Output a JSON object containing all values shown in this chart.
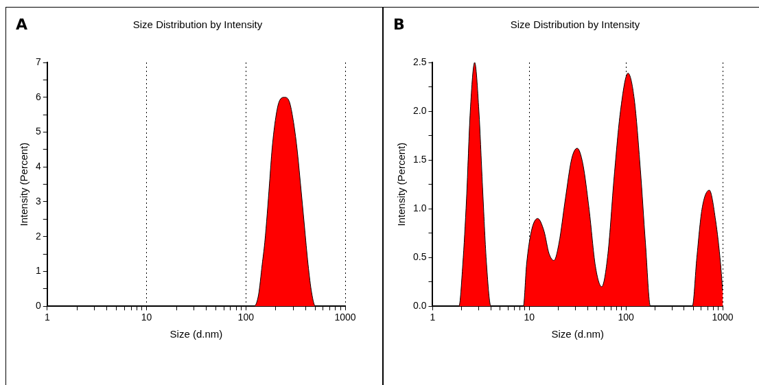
{
  "chart_data": [
    {
      "type": "area",
      "title": "Size Distribution by Intensity",
      "xlabel": "Size (d.nm)",
      "ylabel": "Intensity (Percent)",
      "annotations": [
        "A"
      ],
      "log": "x",
      "grid": "x",
      "xlim": [
        1,
        1000
      ],
      "xticks": [
        1,
        {
          "value": 2,
          "label": null
        },
        {
          "value": 3,
          "label": null
        },
        {
          "value": 4,
          "label": null
        },
        {
          "value": 5,
          "label": null
        },
        {
          "value": 6,
          "label": null
        },
        {
          "value": 7,
          "label": null
        },
        {
          "value": 8,
          "label": null
        },
        {
          "value": 9,
          "label": null
        },
        10,
        {
          "value": 20,
          "label": null
        },
        {
          "value": 30,
          "label": null
        },
        {
          "value": 40,
          "label": null
        },
        {
          "value": 50,
          "label": null
        },
        {
          "value": 60,
          "label": null
        },
        {
          "value": 70,
          "label": null
        },
        {
          "value": 80,
          "label": null
        },
        {
          "value": 90,
          "label": null
        },
        100,
        {
          "value": 200,
          "label": null
        },
        {
          "value": 300,
          "label": null
        },
        {
          "value": 400,
          "label": null
        },
        {
          "value": 500,
          "label": null
        },
        {
          "value": 600,
          "label": null
        },
        {
          "value": 700,
          "label": null
        },
        {
          "value": 800,
          "label": null
        },
        {
          "value": 900,
          "label": null
        },
        1000
      ],
      "ylim": [
        0,
        7
      ],
      "yticks": [
        0,
        {
          "value": 0.5,
          "label": null
        },
        1,
        {
          "value": 1.5,
          "label": null
        },
        2,
        {
          "value": 2.5,
          "label": null
        },
        3,
        {
          "value": 3.5,
          "label": null
        },
        4,
        {
          "value": 4.5,
          "label": null
        },
        5,
        {
          "value": 5.5,
          "label": null
        },
        6,
        {
          "value": 6.5,
          "label": null
        },
        7
      ],
      "series": [
        {
          "color": "#ff0000",
          "x": [
            1,
            120.8,
            134,
            146,
            155,
            164,
            173,
            184,
            200,
            218,
            245,
            275,
            299,
            327,
            356,
            388,
            423,
            460,
            502,
            1000
          ],
          "values": [
            0,
            0,
            0.32,
            1.2,
            1.83,
            2.65,
            3.53,
            4.54,
            5.42,
            5.9,
            6.0,
            5.86,
            5.36,
            4.54,
            3.47,
            2.33,
            1.2,
            0.38,
            0,
            0
          ]
        }
      ]
    },
    {
      "type": "area",
      "title": "Size Distribution by Intensity",
      "xlabel": "Size (d.nm)",
      "ylabel": "Intensity (Percent)",
      "annotations": [
        "B"
      ],
      "log": "x",
      "grid": "x",
      "xlim": [
        1,
        1000
      ],
      "xticks": [
        1,
        {
          "value": 2,
          "label": null
        },
        {
          "value": 3,
          "label": null
        },
        {
          "value": 4,
          "label": null
        },
        {
          "value": 5,
          "label": null
        },
        {
          "value": 6,
          "label": null
        },
        {
          "value": 7,
          "label": null
        },
        {
          "value": 8,
          "label": null
        },
        {
          "value": 9,
          "label": null
        },
        10,
        {
          "value": 20,
          "label": null
        },
        {
          "value": 30,
          "label": null
        },
        {
          "value": 40,
          "label": null
        },
        {
          "value": 50,
          "label": null
        },
        {
          "value": 60,
          "label": null
        },
        {
          "value": 70,
          "label": null
        },
        {
          "value": 80,
          "label": null
        },
        {
          "value": 90,
          "label": null
        },
        100,
        {
          "value": 200,
          "label": null
        },
        {
          "value": 300,
          "label": null
        },
        {
          "value": 400,
          "label": null
        },
        {
          "value": 500,
          "label": null
        },
        {
          "value": 600,
          "label": null
        },
        {
          "value": 700,
          "label": null
        },
        {
          "value": 800,
          "label": null
        },
        {
          "value": 900,
          "label": null
        },
        1000
      ],
      "ylim": [
        0,
        2.5
      ],
      "yticks": [
        {
          "value": 0,
          "label": "0.0"
        },
        {
          "value": 0.25,
          "label": null
        },
        0.5,
        {
          "value": 0.75,
          "label": null
        },
        {
          "value": 1,
          "label": "1.0"
        },
        {
          "value": 1.25,
          "label": null
        },
        1.5,
        {
          "value": 1.75,
          "label": null
        },
        {
          "value": 2,
          "label": "2.0"
        },
        {
          "value": 2.25,
          "label": null
        },
        2.5
      ],
      "series": [
        {
          "color": "#ff0000",
          "x": [
            1,
            1.87,
            2.05,
            2.24,
            2.45,
            2.72,
            3.01,
            3.3,
            3.61,
            4.01,
            8.67,
            9.37,
            10.5,
            12.2,
            14.2,
            16.0,
            18.0,
            20.3,
            23.6,
            27.4,
            31.3,
            35.8,
            41.6,
            48.3,
            56.1,
            65.1,
            75.5,
            87.7,
            105,
            122,
            141,
            159,
            179,
            486,
            541,
            610,
            729,
            846,
            953,
            1000
          ],
          "values": [
            0,
            0,
            0.43,
            1.1,
            2.0,
            2.5,
            2.0,
            1.17,
            0.43,
            0,
            0,
            0.43,
            0.77,
            0.9,
            0.77,
            0.54,
            0.47,
            0.65,
            1.1,
            1.51,
            1.62,
            1.46,
            0.99,
            0.41,
            0.2,
            0.54,
            1.33,
            2.0,
            2.39,
            2.12,
            1.4,
            0.65,
            0,
            0,
            0.5,
            0.99,
            1.19,
            0.88,
            0.43,
            0.16
          ]
        }
      ]
    }
  ]
}
